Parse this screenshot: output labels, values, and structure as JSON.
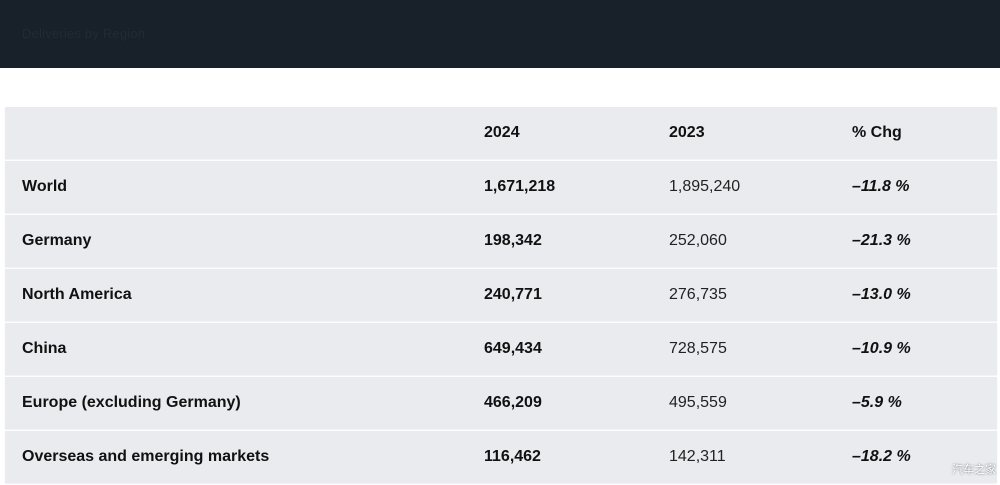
{
  "banner": {
    "caption": "Deliveries by Region"
  },
  "table": {
    "headers": {
      "region": "",
      "y2024": "2024",
      "y2023": "2023",
      "chg": "% Chg"
    },
    "rows": [
      {
        "region": "World",
        "y2024": "1,671,218",
        "y2023": "1,895,240",
        "chg": "–11.8 %"
      },
      {
        "region": "Germany",
        "y2024": "198,342",
        "y2023": "252,060",
        "chg": "–21.3 %"
      },
      {
        "region": "North America",
        "y2024": "240,771",
        "y2023": "276,735",
        "chg": "–13.0 %"
      },
      {
        "region": "China",
        "y2024": "649,434",
        "y2023": "728,575",
        "chg": "–10.9 %"
      },
      {
        "region": "Europe (excluding Germany)",
        "y2024": "466,209",
        "y2023": "495,559",
        "chg": "–5.9 %"
      },
      {
        "region": "Overseas and emerging markets",
        "y2024": "116,462",
        "y2023": "142,311",
        "chg": "–18.2 %"
      }
    ]
  },
  "watermark": {
    "text": "汽车之家"
  },
  "colors": {
    "banner": "#18202a",
    "row_background": "#e9ebef",
    "text": "#111111"
  }
}
